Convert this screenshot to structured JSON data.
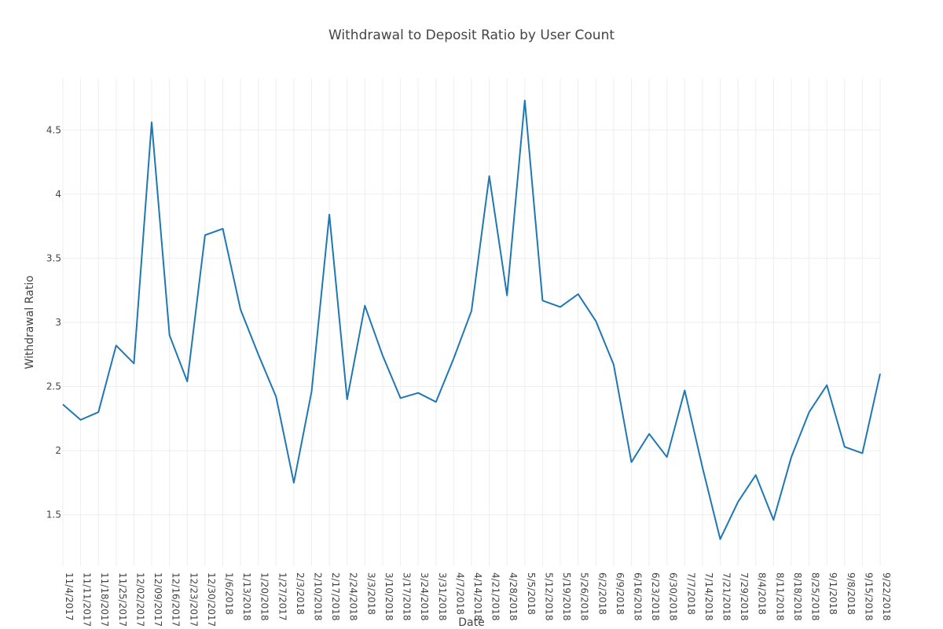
{
  "chart_data": {
    "type": "line",
    "title": "Withdrawal to Deposit Ratio by User Count",
    "xlabel": "Date",
    "ylabel": "Withdrawal Ratio",
    "grid": true,
    "legend": "none",
    "colors": {
      "line": "#1f77b4",
      "grid": "#eeeeee",
      "text": "#444444"
    },
    "ylim": [
      1.1,
      4.9
    ],
    "y_ticks": [
      1.5,
      2,
      2.5,
      3,
      3.5,
      4,
      4.5
    ],
    "y_tick_labels": [
      "1.5",
      "2",
      "2.5",
      "3",
      "3.5",
      "4",
      "4.5"
    ],
    "categories": [
      "11/4/2017",
      "11/11/2017",
      "11/18/2017",
      "11/25/2017",
      "12/02/2017",
      "12/09/2017",
      "12/16/2017",
      "12/23/2017",
      "12/30/2017",
      "1/6/2018",
      "1/13/2018",
      "1/20/2018",
      "1/27/2017",
      "2/3/2018",
      "2/10/2018",
      "2/17/2018",
      "2/24/2018",
      "3/3/2018",
      "3/10/2018",
      "3/17/2018",
      "3/24/2018",
      "3/31/2018",
      "4/7/2018",
      "4/14/2018",
      "4/21/2018",
      "4/28/2018",
      "5/5/2018",
      "5/12/2018",
      "5/19/2018",
      "5/26/2018",
      "6/2/2018",
      "6/9/2018",
      "6/16/2018",
      "6/23/2018",
      "6/30/2018",
      "7/7/2018",
      "7/14/2018",
      "7/21/2018",
      "7/29/2018",
      "8/4/2018",
      "8/11/2018",
      "8/18/2018",
      "8/25/2018",
      "9/1/2018",
      "9/8/2018",
      "9/15/2018",
      "9/22/2018"
    ],
    "series": [
      {
        "values": [
          2.36,
          2.24,
          2.3,
          2.82,
          2.68,
          4.56,
          2.9,
          2.54,
          3.68,
          3.73,
          3.1,
          2.75,
          2.42,
          1.75,
          2.46,
          3.84,
          2.4,
          3.13,
          2.74,
          2.41,
          2.45,
          2.38,
          2.72,
          3.09,
          4.14,
          3.21,
          4.73,
          3.17,
          3.12,
          3.22,
          3.01,
          2.67,
          1.91,
          2.13,
          1.95,
          2.47,
          1.87,
          1.31,
          1.6,
          1.81,
          1.46,
          1.95,
          2.3,
          2.51,
          2.03,
          1.98,
          2.6
        ]
      }
    ]
  }
}
